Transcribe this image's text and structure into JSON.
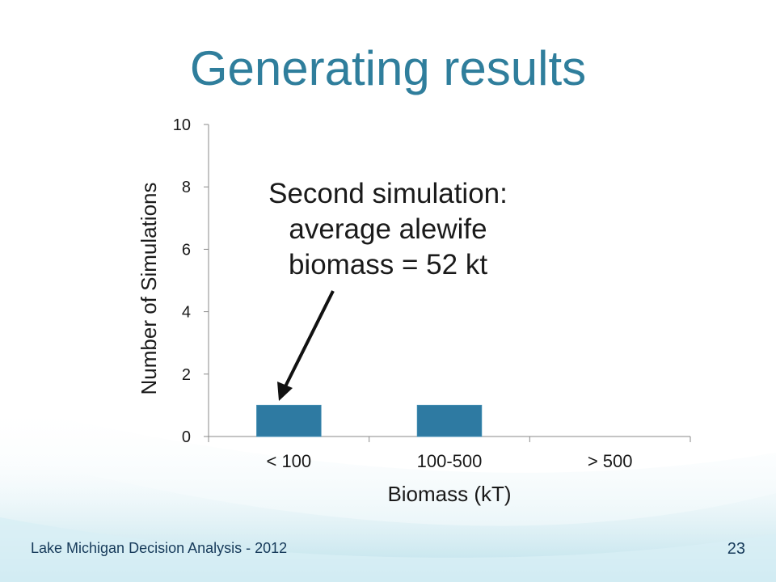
{
  "slide": {
    "title": "Generating results",
    "annotation_lines": [
      "Second simulation:",
      "average alewife",
      "biomass = 52 kt"
    ],
    "footer": "Lake Michigan Decision Analysis - 2012",
    "page_number": "23"
  },
  "colors": {
    "title": "#2f7e9c",
    "bar": "#2e7aa2",
    "wave": "#bfe3ec"
  },
  "chart_data": {
    "type": "bar",
    "categories": [
      "< 100",
      "100-500",
      "> 500"
    ],
    "values": [
      1,
      1,
      0
    ],
    "xlabel": "Biomass (kT)",
    "ylabel": "Number of Simulations",
    "ylim": [
      0,
      10
    ],
    "yticks": [
      0,
      2,
      4,
      6,
      8,
      10
    ],
    "grid": false,
    "legend": "none"
  }
}
